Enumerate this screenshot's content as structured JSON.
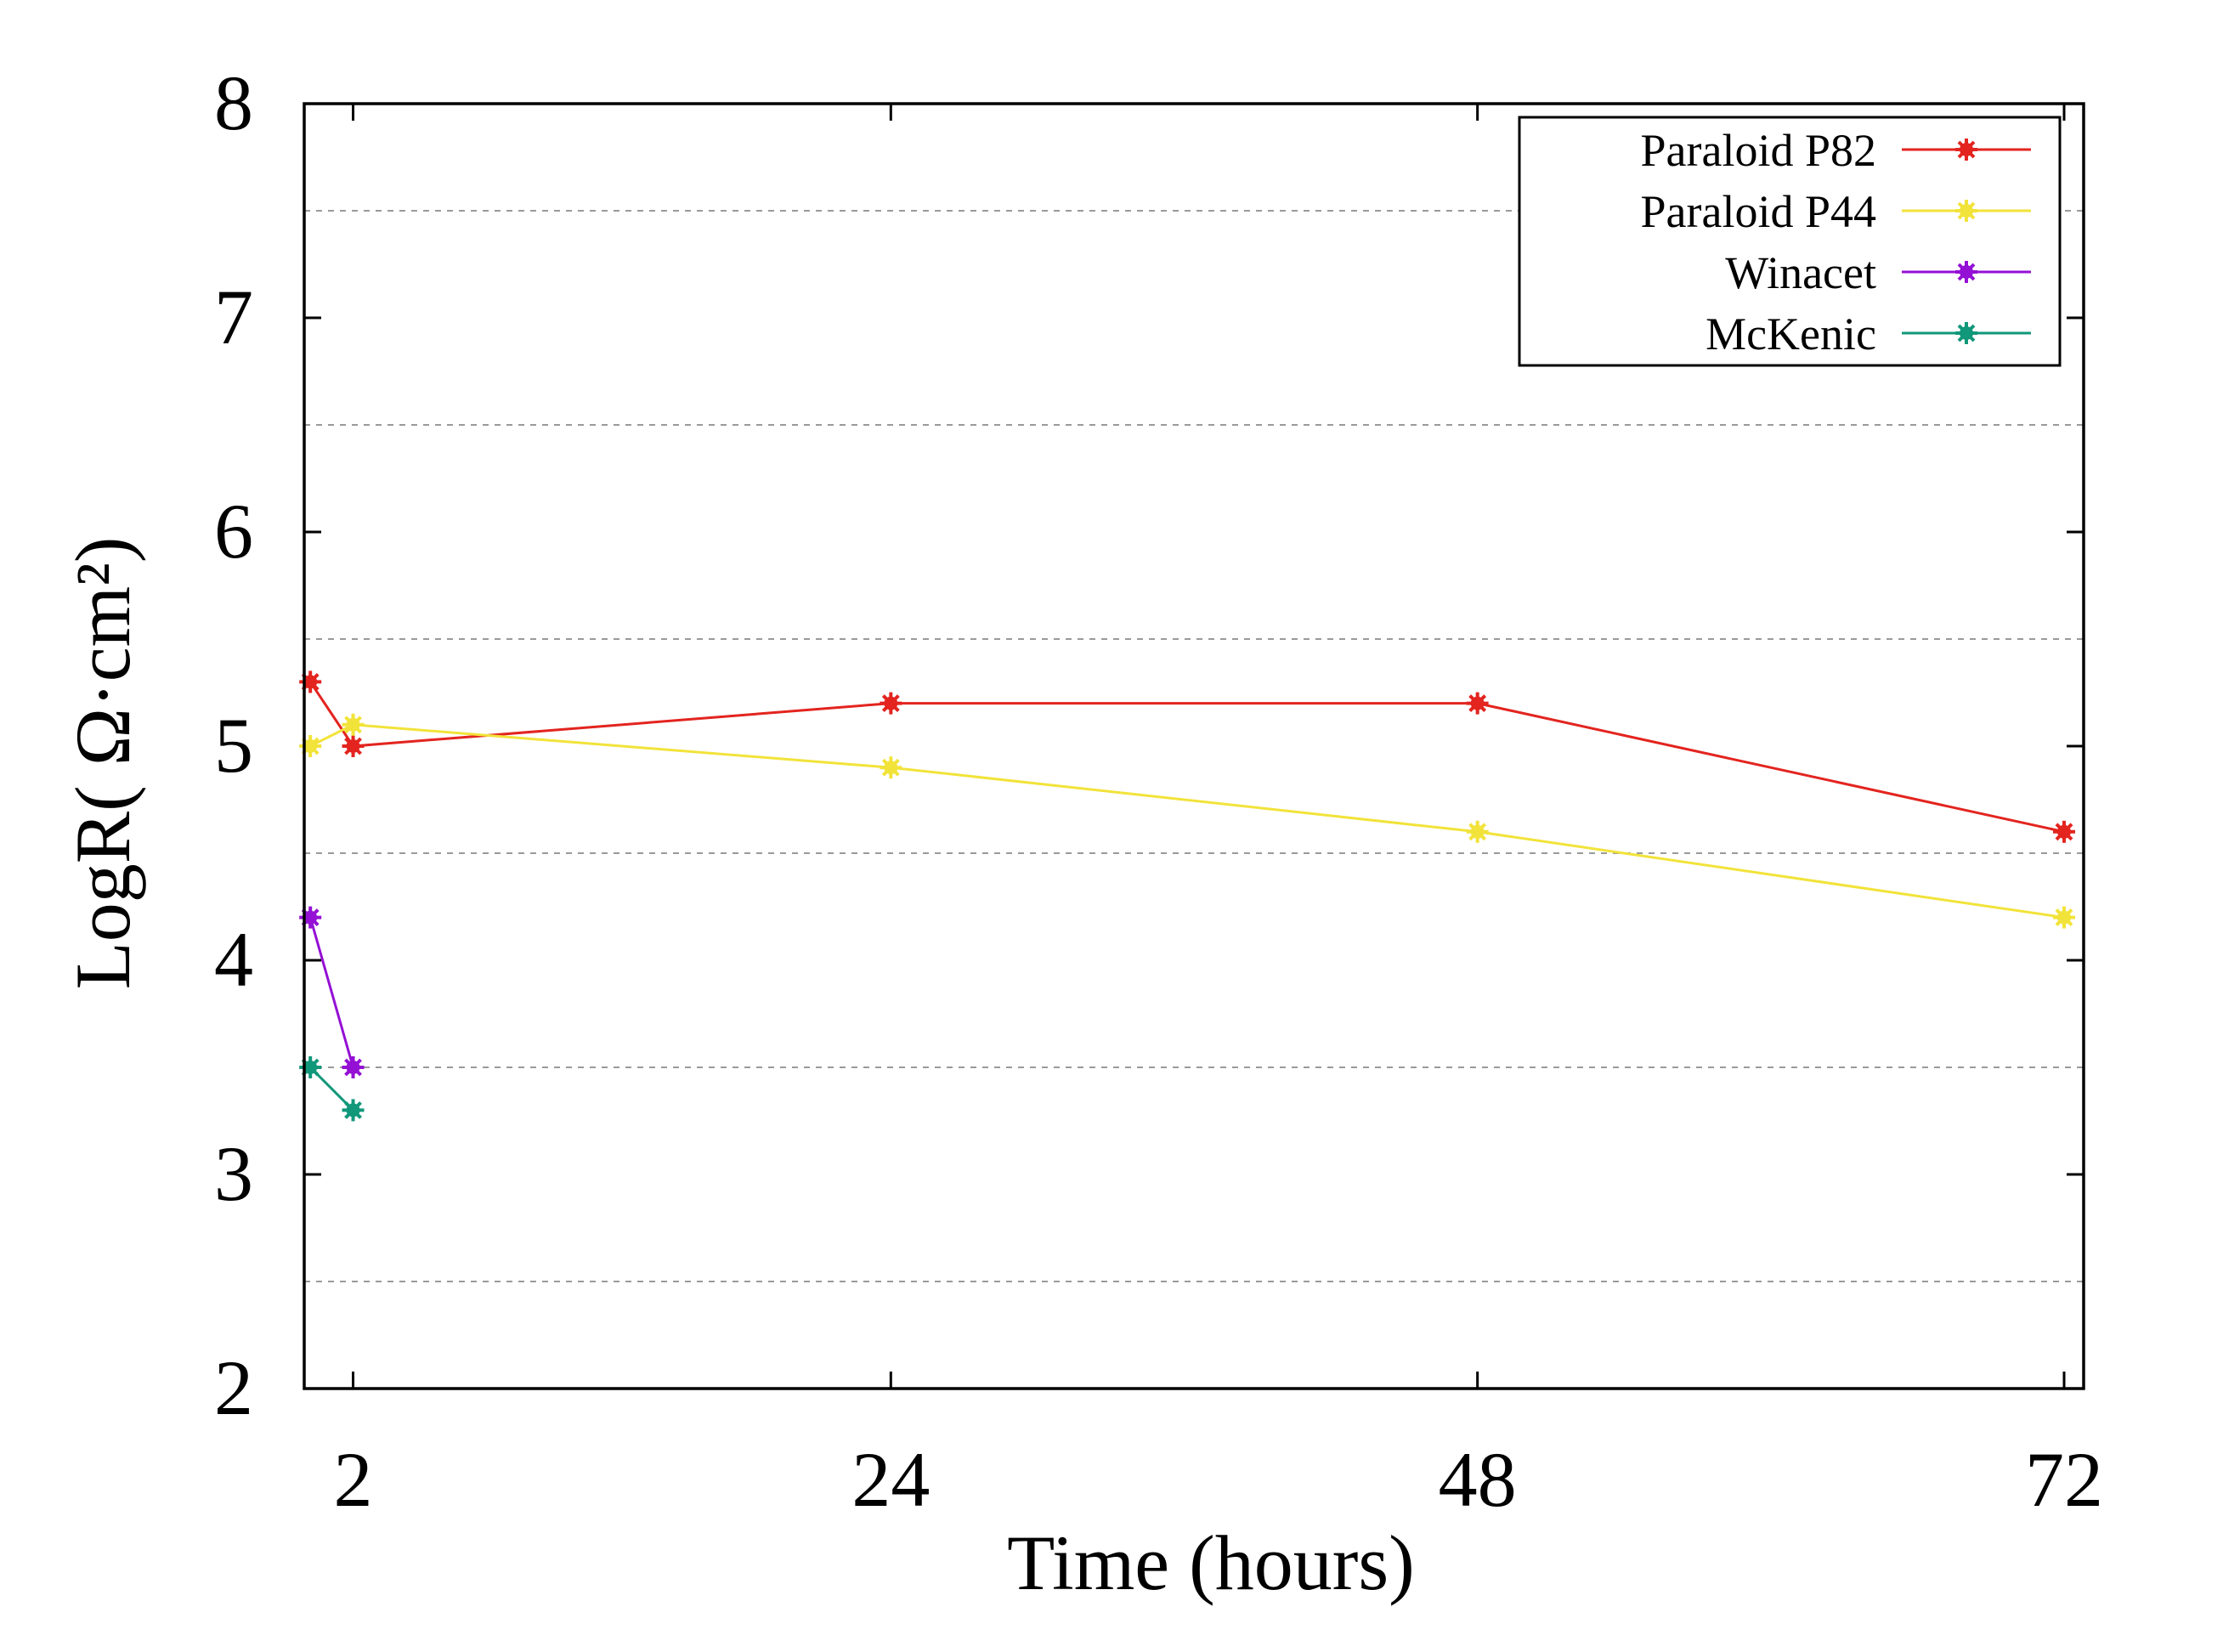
{
  "chart_data": {
    "type": "line",
    "title": "",
    "xlabel": "Time (hours)",
    "ylabel": "LogR( Ω·cm²)",
    "xlim": [
      0,
      72.8
    ],
    "ylim": [
      2,
      8
    ],
    "xticks": [
      2,
      24,
      48,
      72
    ],
    "yticks": [
      2,
      3,
      4,
      5,
      6,
      7,
      8
    ],
    "grid": "horizontal dashed at 2.5, 3.5, 4.5, 5.5, 6.5, 7.5",
    "minor_grid": [
      2.5,
      3.5,
      4.5,
      5.5,
      6.5,
      7.5
    ],
    "legend": "top-right",
    "series": [
      {
        "name": "Paraloid P82",
        "color": "#e3241f",
        "x": [
          0.25,
          2,
          24,
          48,
          72
        ],
        "y": [
          5.3,
          5.0,
          5.2,
          5.2,
          4.6
        ]
      },
      {
        "name": "Paraloid P44",
        "color": "#f2e33a",
        "x": [
          0.25,
          2,
          24,
          48,
          72
        ],
        "y": [
          5.0,
          5.1,
          4.9,
          4.6,
          4.2
        ]
      },
      {
        "name": "Winacet",
        "color": "#9410d4",
        "x": [
          0.25,
          2
        ],
        "y": [
          4.2,
          3.5
        ]
      },
      {
        "name": "McKenic",
        "color": "#11977a",
        "x": [
          0.25,
          2
        ],
        "y": [
          3.5,
          3.3
        ]
      }
    ]
  }
}
